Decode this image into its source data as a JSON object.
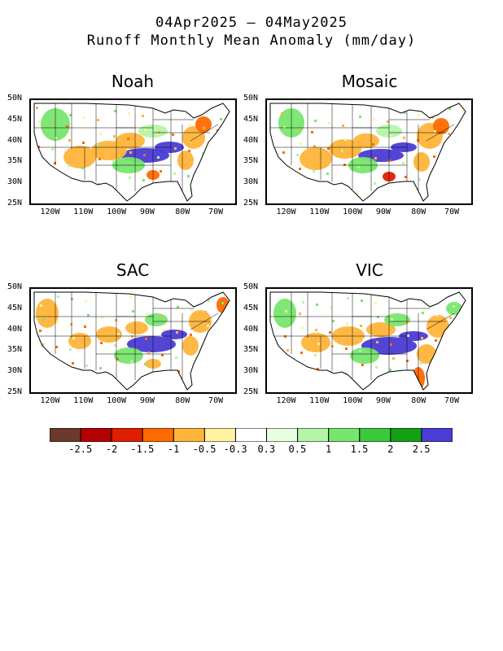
{
  "title": {
    "line1": "04Apr2025 – 04May2025",
    "line2": "Runoff Monthly Mean Anomaly (mm/day)"
  },
  "axes": {
    "lat_labels": [
      "50N",
      "45N",
      "40N",
      "35N",
      "30N",
      "25N"
    ],
    "lon_labels": [
      "120W",
      "110W",
      "100W",
      "90W",
      "80W",
      "70W"
    ]
  },
  "panels": [
    {
      "id": "noah",
      "title": "Noah"
    },
    {
      "id": "mosaic",
      "title": "Mosaic"
    },
    {
      "id": "sac",
      "title": "SAC"
    },
    {
      "id": "vic",
      "title": "VIC"
    }
  ],
  "colorbar": {
    "colors": [
      "#6b3a2c",
      "#b40000",
      "#e01e00",
      "#ff6a00",
      "#ffb43a",
      "#fff2a0",
      "#ffffff",
      "#e6ffe0",
      "#b4f5a8",
      "#78e66e",
      "#3cc83c",
      "#14a014",
      "#4a3cd4"
    ],
    "tick_labels": [
      "-2.5",
      "-2",
      "-1.5",
      "-1",
      "-0.5",
      "-0.3",
      "0.3",
      "0.5",
      "1",
      "1.5",
      "2",
      "2.5"
    ]
  }
}
